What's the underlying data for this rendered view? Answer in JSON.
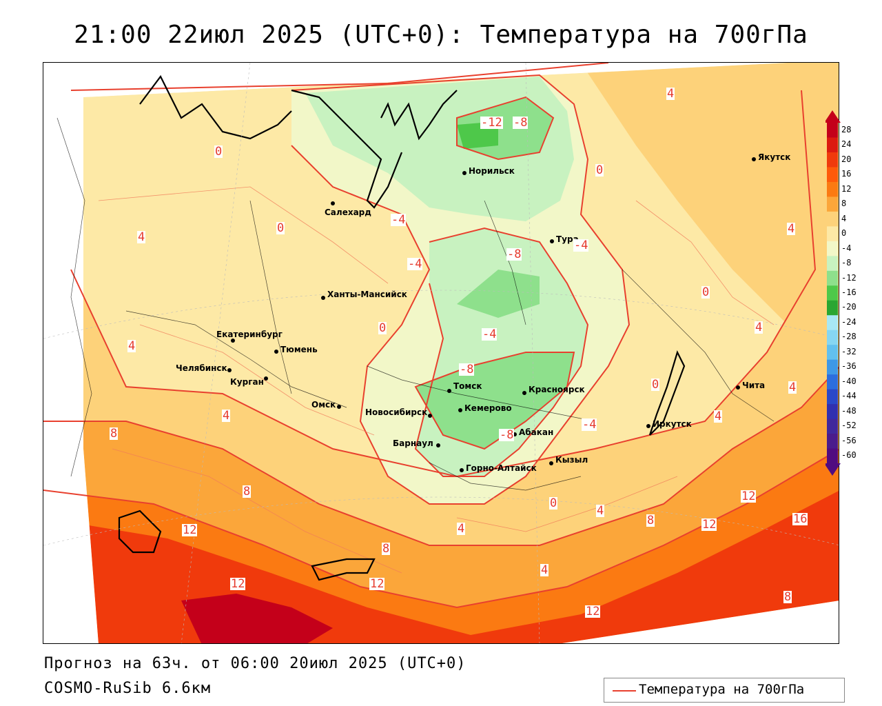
{
  "header": {
    "title": "21:00 22июл 2025 (UTC+0): Температура на 700гПа"
  },
  "footer": {
    "forecast_line": "Прогноз на 63ч. от 06:00 20июл 2025 (UTC+0)",
    "model_line": "COSMO-RuSib 6.6км"
  },
  "legend": {
    "line_label": "Температура на 700гПа",
    "line_color": "#e8402e"
  },
  "colorbar": {
    "ticks": [
      "28",
      "24",
      "20",
      "16",
      "12",
      "8",
      "4",
      "0",
      "-4",
      "-8",
      "-12",
      "-16",
      "-20",
      "-24",
      "-28",
      "-32",
      "-36",
      "-40",
      "-44",
      "-48",
      "-52",
      "-56",
      "-60"
    ],
    "colors": [
      "#c4001a",
      "#dc1a10",
      "#f03a0c",
      "#fe5a0a",
      "#fb7a12",
      "#fba63a",
      "#fdd27a",
      "#fde9a6",
      "#f2f7c8",
      "#c8f2c0",
      "#8ee08c",
      "#4ec84a",
      "#2aa632",
      "#a8e8f4",
      "#86d6f2",
      "#62c0ee",
      "#3e98e6",
      "#2c6ede",
      "#2a48c8",
      "#3030b0",
      "#40289c",
      "#4a1c8c",
      "#500c80"
    ]
  },
  "cities": [
    {
      "name": "Норильск"
    },
    {
      "name": "Якутск"
    },
    {
      "name": "Салехард"
    },
    {
      "name": "Тура"
    },
    {
      "name": "Ханты-Мансийск"
    },
    {
      "name": "Екатеринбург"
    },
    {
      "name": "Тюмень"
    },
    {
      "name": "Челябинск"
    },
    {
      "name": "Курган"
    },
    {
      "name": "Омск"
    },
    {
      "name": "Новосибирск"
    },
    {
      "name": "Томск"
    },
    {
      "name": "Кемерово"
    },
    {
      "name": "Красноярск"
    },
    {
      "name": "Абакан"
    },
    {
      "name": "Барнаул"
    },
    {
      "name": "Горно-Алтайск"
    },
    {
      "name": "Кызыл"
    },
    {
      "name": "Иркутск"
    },
    {
      "name": "Чита"
    }
  ],
  "contour_labels": [
    "-12",
    "-8",
    "4",
    "0",
    "0",
    "4",
    "-4",
    "0",
    "-4",
    "-8",
    "-4",
    "0",
    "4",
    "4",
    "0",
    "4",
    "-4",
    "-8",
    "4",
    "-8",
    "-4",
    "4",
    "0",
    "8",
    "4",
    "8",
    "0",
    "4",
    "4",
    "12",
    "8",
    "12",
    "8",
    "12",
    "16",
    "12",
    "12",
    "12",
    "8",
    "4"
  ]
}
